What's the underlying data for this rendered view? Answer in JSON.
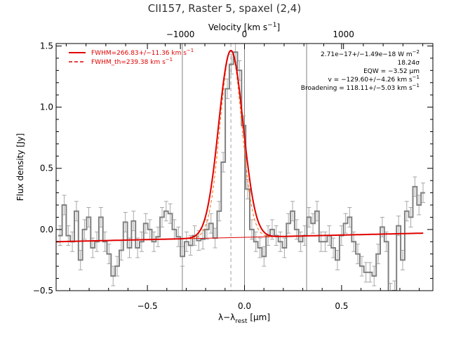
{
  "chart_data": {
    "type": "line",
    "title": "CII157, Raster 5, spaxel (2,4)",
    "xlabel_main": "λ−λ",
    "xlabel_sub": "rest",
    "xlabel_unit": " [μm]",
    "ylabel": "Flux density [Jy]",
    "top_xlabel_main": "Velocity [km s",
    "top_xlabel_sup": "−1",
    "top_xlabel_end": "]",
    "xlim": [
      -0.97,
      0.97
    ],
    "ylim": [
      -0.5,
      1.52
    ],
    "x_ticks": [
      -0.5,
      0.0,
      0.5
    ],
    "x_tick_labels": [
      "−0.5",
      "0.0",
      "0.5"
    ],
    "y_ticks": [
      -0.5,
      0.0,
      0.5,
      1.0,
      1.5
    ],
    "y_tick_labels": [
      "−0.5",
      "0.0",
      "0.5",
      "1.0",
      "1.5"
    ],
    "top_ticks_x": [
      -0.33,
      0.0,
      0.51
    ],
    "top_tick_labels": [
      "−1000",
      "0",
      "1000"
    ],
    "vertical_lines_x": [
      -0.32,
      0.0,
      0.32
    ],
    "center_dashed_x": -0.07,
    "continuum": {
      "x": [
        -0.97,
        0.92
      ],
      "y": [
        -0.1,
        -0.03
      ]
    },
    "fit": {
      "amplitude": 1.53,
      "center": -0.07,
      "sigma": 0.063
    },
    "theoretical_fit": {
      "amplitude": 1.53,
      "center": -0.07,
      "sigma": 0.056
    },
    "data_step": {
      "x_start": -0.96,
      "dx": 0.021,
      "y": [
        -0.05,
        0.2,
        -0.05,
        -0.1,
        0.15,
        -0.25,
        0.0,
        0.1,
        -0.15,
        -0.1,
        0.1,
        -0.1,
        -0.2,
        -0.38,
        -0.3,
        -0.17,
        0.06,
        -0.15,
        0.07,
        -0.15,
        -0.1,
        0.05,
        0.0,
        -0.1,
        -0.06,
        0.1,
        0.15,
        0.13,
        0.0,
        -0.06,
        -0.22,
        -0.1,
        -0.13,
        -0.05,
        -0.09,
        -0.08,
        0.0,
        0.05,
        -0.07,
        0.15,
        0.55,
        1.15,
        1.35,
        1.45,
        1.3,
        0.85,
        0.33,
        0.0,
        -0.1,
        -0.15,
        -0.22,
        -0.05,
        0.0,
        -0.05,
        -0.1,
        -0.15,
        0.05,
        0.15,
        0.0,
        -0.1,
        -0.05,
        0.1,
        0.05,
        0.15,
        -0.1,
        -0.1,
        -0.05,
        -0.15,
        -0.25,
        -0.05,
        0.05,
        0.1,
        -0.1,
        -0.2,
        -0.3,
        -0.35,
        -0.35,
        -0.38,
        -0.2,
        0.02,
        -0.1,
        -0.52,
        -0.5,
        0.03,
        -0.25,
        0.15,
        0.1,
        0.35,
        0.2,
        0.3
      ]
    },
    "error": 0.08,
    "legend": [
      {
        "label": "FWHM=266.83+/−11.36 km s",
        "sup": "−1",
        "style": "solid"
      },
      {
        "label": "FWHM_th=239.38 km s",
        "sup": "−1",
        "style": "dashed"
      }
    ],
    "legend_position": "top-left",
    "annotations": [
      {
        "text": "2.71e−17+/−1.49e−18 W m",
        "sup": "−2"
      },
      {
        "text": "18.24σ",
        "sup": ""
      },
      {
        "text": "EQW = −3.52 μm",
        "sup": ""
      },
      {
        "text": "v = −129.60+/−4.26 km s",
        "sup": "−1"
      },
      {
        "text": "Broadening = 118.11+/−5.03 km s",
        "sup": "−1"
      }
    ],
    "colors": {
      "fit": "#e00000",
      "theoretical_fit": "#ff6a00",
      "data": "#808080",
      "error": "#a8a8a8",
      "vlines": "#808080",
      "axes": "#000000"
    }
  }
}
